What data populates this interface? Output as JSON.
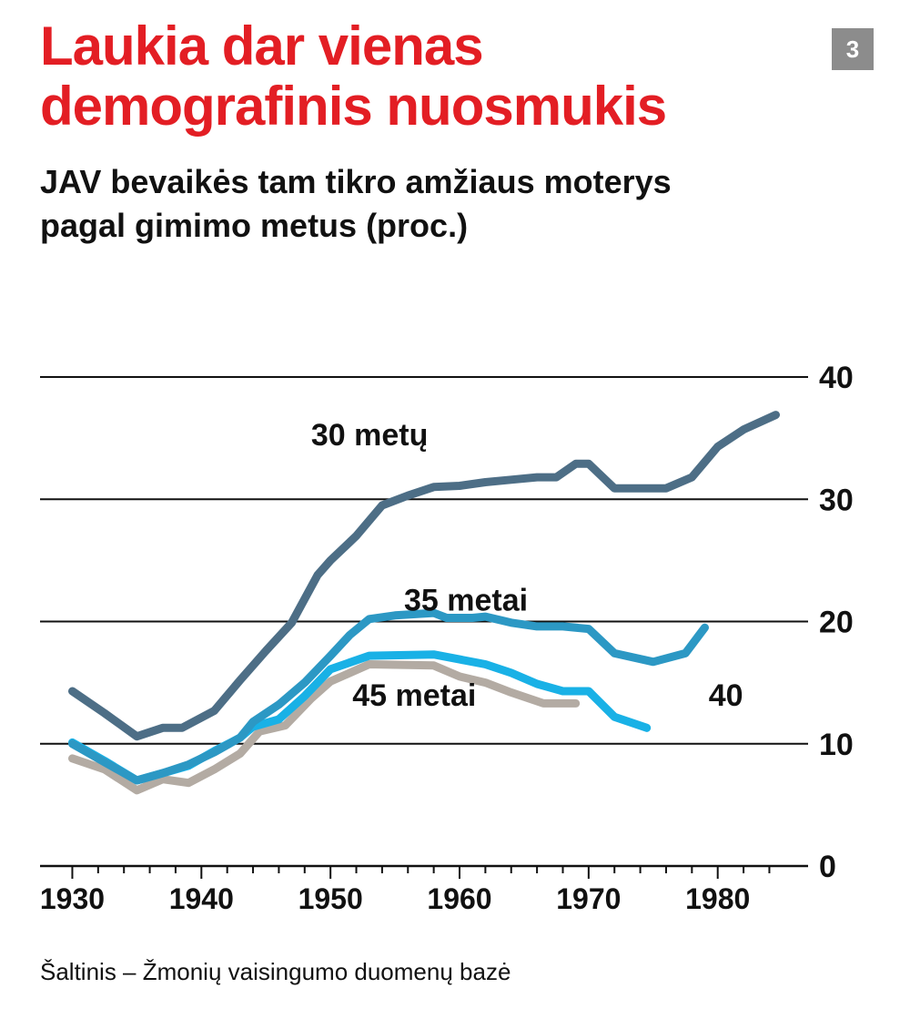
{
  "header": {
    "title_line1": "Laukia dar vienas",
    "title_line2": "demografinis nuosmukis",
    "subtitle_line1": "JAV bevaikės tam tikro amžiaus moterys",
    "subtitle_line2": "pagal gimimo metus (proc.)",
    "badge": "3"
  },
  "footer": {
    "source": "Šaltinis – Žmonių vaisingumo duomenų bazė"
  },
  "colors": {
    "title": "#e31e24",
    "series_30": "#4d6e86",
    "series_35": "#2c98c4",
    "series_40": "#19b1e6",
    "series_45": "#b3aba3",
    "grid": "#111111",
    "badge": "#8c8c8c"
  },
  "chart_data": {
    "type": "line",
    "title": "",
    "xlabel": "",
    "ylabel": "",
    "xlim": [
      1927.5,
      1987
    ],
    "ylim": [
      0,
      40
    ],
    "x_ticks": [
      1930,
      1940,
      1950,
      1960,
      1970,
      1980
    ],
    "y_ticks": [
      0,
      10,
      20,
      30,
      40
    ],
    "y_axis_side": "right",
    "grid": true,
    "series": [
      {
        "name": "30 metų",
        "color": "#4d6e86",
        "x": [
          1930,
          1932.5,
          1935,
          1937,
          1938.5,
          1941,
          1943,
          1945,
          1947,
          1949,
          1950,
          1952,
          1954,
          1956,
          1958,
          1960,
          1962,
          1964,
          1966,
          1967.5,
          1969,
          1970,
          1972,
          1974,
          1976,
          1978,
          1980,
          1982,
          1984.5
        ],
        "y": [
          14.3,
          12.5,
          10.6,
          11.3,
          11.3,
          12.7,
          15.2,
          17.6,
          19.9,
          23.8,
          25.0,
          27.0,
          29.5,
          30.3,
          31.0,
          31.1,
          31.4,
          31.6,
          31.8,
          31.8,
          32.9,
          32.9,
          30.9,
          30.9,
          30.9,
          31.8,
          34.3,
          35.7,
          36.9
        ]
      },
      {
        "name": "35 metai",
        "color": "#2c98c4",
        "x": [
          1930,
          1932.5,
          1935,
          1937,
          1939,
          1941,
          1943,
          1944,
          1946,
          1948,
          1950,
          1951.5,
          1953,
          1955,
          1958,
          1959,
          1961,
          1962,
          1964,
          1966,
          1968,
          1970,
          1972,
          1975,
          1977.5,
          1979
        ],
        "y": [
          10.0,
          8.5,
          7.0,
          7.6,
          8.3,
          9.3,
          10.5,
          11.8,
          13.2,
          15.0,
          17.2,
          18.9,
          20.2,
          20.5,
          20.7,
          20.3,
          20.3,
          20.4,
          19.9,
          19.6,
          19.6,
          19.4,
          17.4,
          16.7,
          17.4,
          19.5
        ]
      },
      {
        "name": "40",
        "color": "#19b1e6",
        "x": [
          1930,
          1932.5,
          1935,
          1937,
          1939,
          1941,
          1943,
          1944,
          1946,
          1948,
          1950,
          1953,
          1958,
          1960,
          1962,
          1964,
          1966,
          1968,
          1970,
          1972,
          1974.5
        ],
        "y": [
          10.1,
          8.6,
          7.0,
          7.6,
          8.2,
          9.4,
          10.5,
          11.4,
          12.0,
          13.9,
          16.1,
          17.2,
          17.3,
          16.9,
          16.5,
          15.8,
          14.9,
          14.3,
          14.3,
          12.2,
          11.3
        ]
      },
      {
        "name": "45 metai",
        "color": "#b3aba3",
        "x": [
          1930,
          1932.5,
          1935,
          1937,
          1939,
          1941,
          1943,
          1944.5,
          1946.5,
          1948.5,
          1950,
          1953,
          1958,
          1960,
          1962,
          1964,
          1966.5,
          1969
        ],
        "y": [
          8.8,
          7.9,
          6.2,
          7.1,
          6.8,
          7.9,
          9.2,
          11.0,
          11.5,
          13.7,
          15.1,
          16.5,
          16.4,
          15.5,
          15.0,
          14.2,
          13.3,
          13.3
        ]
      }
    ],
    "labels": [
      {
        "text": "30 metų",
        "x": 1948.5,
        "y": 34.4
      },
      {
        "text": "35 metai",
        "x": 1955.7,
        "y": 20.9
      },
      {
        "text": "45 metai",
        "x": 1951.7,
        "y": 13.1
      },
      {
        "text": "40",
        "x": 1979.3,
        "y": 13.1
      }
    ]
  }
}
